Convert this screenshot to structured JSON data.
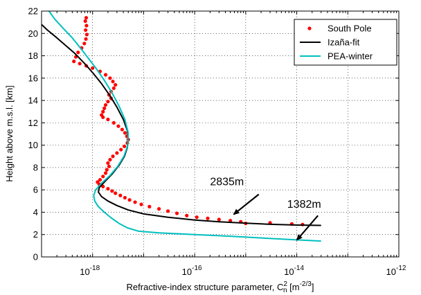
{
  "chart_data": {
    "type": "line",
    "xlabel": "Refractive-index structure parameter, C",
    "xlabel_sub": "n",
    "xlabel_sup": "2",
    "xlabel_unit": "[m",
    "xlabel_unit_exp": "-2/3",
    "xlabel_unit_close": "]",
    "ylabel": "Height above m.s.l. [km]",
    "xscale": "log",
    "xlim": [
      1e-19,
      1e-12
    ],
    "ylim": [
      0,
      22
    ],
    "grid": true,
    "legend_position": "top-right",
    "xticks": [
      {
        "value": 1e-18,
        "base": "10",
        "exp": "-18"
      },
      {
        "value": 1e-16,
        "base": "10",
        "exp": "-16"
      },
      {
        "value": 1e-14,
        "base": "10",
        "exp": "-14"
      },
      {
        "value": 1e-12,
        "base": "10",
        "exp": "-12"
      }
    ],
    "yticks": [
      0,
      2,
      4,
      6,
      8,
      10,
      12,
      14,
      16,
      18,
      20,
      22
    ],
    "series": [
      {
        "name": "South Pole",
        "style": "markers",
        "color": "#ff0000",
        "points": [
          [
            7.5e-19,
            21.4
          ],
          [
            7.2e-19,
            21.1
          ],
          [
            7.6e-19,
            20.7
          ],
          [
            7.3e-19,
            20.3
          ],
          [
            7.7e-19,
            19.9
          ],
          [
            7.4e-19,
            19.5
          ],
          [
            6.9e-19,
            19.1
          ],
          [
            6.1e-19,
            18.7
          ],
          [
            5.2e-19,
            18.3
          ],
          [
            4.7e-19,
            17.9
          ],
          [
            4.3e-19,
            17.5
          ],
          [
            5.6e-19,
            17.3
          ],
          [
            7.5e-19,
            17.1
          ],
          [
            1e-18,
            16.9
          ],
          [
            1.4e-18,
            16.6
          ],
          [
            1.8e-18,
            16.3
          ],
          [
            2.2e-18,
            16.0
          ],
          [
            2.5e-18,
            15.7
          ],
          [
            2.8e-18,
            15.4
          ],
          [
            2.6e-18,
            15.1
          ],
          [
            2.3e-18,
            14.8
          ],
          [
            2.1e-18,
            14.5
          ],
          [
            2.3e-18,
            14.2
          ],
          [
            2e-18,
            13.9
          ],
          [
            1.8e-18,
            13.6
          ],
          [
            1.7e-18,
            13.3
          ],
          [
            1.6e-18,
            13.0
          ],
          [
            1.5e-18,
            12.7
          ],
          [
            1.6e-18,
            12.5
          ],
          [
            2e-18,
            12.3
          ],
          [
            2.6e-18,
            12.0
          ],
          [
            3.2e-18,
            11.7
          ],
          [
            3.8e-18,
            11.4
          ],
          [
            4.3e-18,
            11.1
          ],
          [
            4.7e-18,
            10.8
          ],
          [
            5e-18,
            10.5
          ],
          [
            4.8e-18,
            10.2
          ],
          [
            4.2e-18,
            9.9
          ],
          [
            3.6e-18,
            9.6
          ],
          [
            3e-18,
            9.3
          ],
          [
            2.5e-18,
            9.0
          ],
          [
            2.2e-18,
            8.7
          ],
          [
            2e-18,
            8.4
          ],
          [
            2.1e-18,
            8.1
          ],
          [
            1.9e-18,
            7.8
          ],
          [
            1.8e-18,
            7.5
          ],
          [
            1.6e-18,
            7.2
          ],
          [
            1.4e-18,
            6.9
          ],
          [
            1.25e-18,
            6.7
          ],
          [
            1.35e-18,
            6.5
          ],
          [
            1.6e-18,
            6.3
          ],
          [
            2e-18,
            6.1
          ],
          [
            2.4e-18,
            5.9
          ],
          [
            2.8e-18,
            5.7
          ],
          [
            3.5e-18,
            5.5
          ],
          [
            4.3e-18,
            5.3
          ],
          [
            5.3e-18,
            5.1
          ],
          [
            6.8e-18,
            4.9
          ],
          [
            9e-18,
            4.7
          ],
          [
            1.3e-17,
            4.5
          ],
          [
            2e-17,
            4.3
          ],
          [
            3e-17,
            4.1
          ],
          [
            4.5e-17,
            3.9
          ],
          [
            7e-17,
            3.7
          ],
          [
            1.1e-16,
            3.55
          ],
          [
            1.8e-16,
            3.45
          ],
          [
            3e-16,
            3.35
          ],
          [
            5e-16,
            3.25
          ],
          [
            8e-16,
            3.15
          ],
          [
            1e-15,
            3.0
          ],
          [
            3e-15,
            3.05
          ],
          [
            8e-15,
            2.95
          ],
          [
            1.3e-14,
            2.9
          ]
        ]
      },
      {
        "name": "Izaña-fit",
        "style": "line",
        "color": "#000000",
        "points": [
          [
            1e-19,
            20.8
          ],
          [
            1.3e-19,
            20.3
          ],
          [
            2e-19,
            19.6
          ],
          [
            3e-19,
            18.9
          ],
          [
            4.5e-19,
            18.2
          ],
          [
            7e-19,
            17.3
          ],
          [
            1e-18,
            16.5
          ],
          [
            1.5e-18,
            15.5
          ],
          [
            2.2e-18,
            14.4
          ],
          [
            3e-18,
            13.4
          ],
          [
            4e-18,
            12.3
          ],
          [
            4.8e-18,
            11.3
          ],
          [
            5e-18,
            10.6
          ],
          [
            4.8e-18,
            9.8
          ],
          [
            4.2e-18,
            9.0
          ],
          [
            3.3e-18,
            8.2
          ],
          [
            2.4e-18,
            7.4
          ],
          [
            1.7e-18,
            6.7
          ],
          [
            1.35e-18,
            6.2
          ],
          [
            1.3e-18,
            5.8
          ],
          [
            1.5e-18,
            5.4
          ],
          [
            2e-18,
            5.0
          ],
          [
            3e-18,
            4.6
          ],
          [
            5e-18,
            4.2
          ],
          [
            1e-17,
            3.85
          ],
          [
            3e-17,
            3.55
          ],
          [
            1e-16,
            3.3
          ],
          [
            3e-16,
            3.15
          ],
          [
            1e-15,
            3.02
          ],
          [
            3e-15,
            2.92
          ],
          [
            1e-14,
            2.85
          ],
          [
            3e-14,
            2.82
          ]
        ]
      },
      {
        "name": "PEA-winter",
        "style": "line",
        "color": "#00bfbf",
        "points": [
          [
            1.4e-19,
            22.0
          ],
          [
            1.8e-19,
            21.3
          ],
          [
            2.6e-19,
            20.5
          ],
          [
            4e-19,
            19.6
          ],
          [
            6e-19,
            18.6
          ],
          [
            8.5e-19,
            17.7
          ],
          [
            1.2e-18,
            16.8
          ],
          [
            1.7e-18,
            15.8
          ],
          [
            2.4e-18,
            14.7
          ],
          [
            3.3e-18,
            13.5
          ],
          [
            4.3e-18,
            12.3
          ],
          [
            5e-18,
            11.1
          ],
          [
            4.9e-18,
            10.0
          ],
          [
            4.1e-18,
            9.0
          ],
          [
            3.1e-18,
            8.1
          ],
          [
            2.2e-18,
            7.3
          ],
          [
            1.5e-18,
            6.6
          ],
          [
            1.15e-18,
            6.0
          ],
          [
            1.05e-18,
            5.5
          ],
          [
            1.1e-18,
            5.0
          ],
          [
            1.3e-18,
            4.5
          ],
          [
            1.7e-18,
            4.0
          ],
          [
            2.3e-18,
            3.5
          ],
          [
            3.3e-18,
            3.0
          ],
          [
            4.8e-18,
            2.6
          ],
          [
            8e-18,
            2.3
          ],
          [
            2e-17,
            2.15
          ],
          [
            1e-16,
            2.0
          ],
          [
            5e-16,
            1.85
          ],
          [
            2e-15,
            1.7
          ],
          [
            8e-15,
            1.55
          ],
          [
            3e-14,
            1.42
          ]
        ]
      }
    ],
    "annotations": [
      {
        "text": "2835m",
        "text_x": 2e-16,
        "text_y": 6.4,
        "arrow_from": [
          1.8e-15,
          5.6
        ],
        "arrow_to": [
          5.8e-16,
          3.8
        ]
      },
      {
        "text": "1382m",
        "text_x": 6.5e-15,
        "text_y": 4.4,
        "arrow_from": [
          2.6e-14,
          3.7
        ],
        "arrow_to": [
          1e-14,
          1.5
        ]
      }
    ]
  }
}
